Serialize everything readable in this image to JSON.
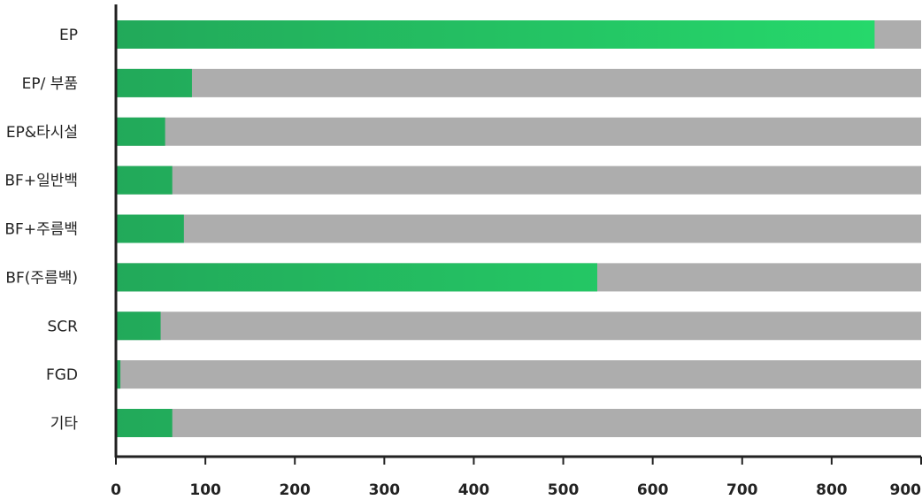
{
  "chart_data": {
    "type": "bar",
    "orientation": "horizontal",
    "categories": [
      "EP",
      "EP/ 부품",
      "EP&타시설",
      "BF+일반백",
      "BF+주름백",
      "BF(주름백)",
      "SCR",
      "FGD",
      "기타"
    ],
    "values": [
      848,
      85,
      55,
      63,
      76,
      538,
      50,
      5,
      63
    ],
    "xlim": [
      0,
      900
    ],
    "xticks": [
      0,
      100,
      200,
      300,
      400,
      500,
      600,
      700,
      800,
      900
    ],
    "grid": false,
    "colors": {
      "bar_fill_start": "#22a95a",
      "bar_fill_end": "#26db6c",
      "bar_background": "#adadad",
      "axis": "#222222"
    }
  }
}
